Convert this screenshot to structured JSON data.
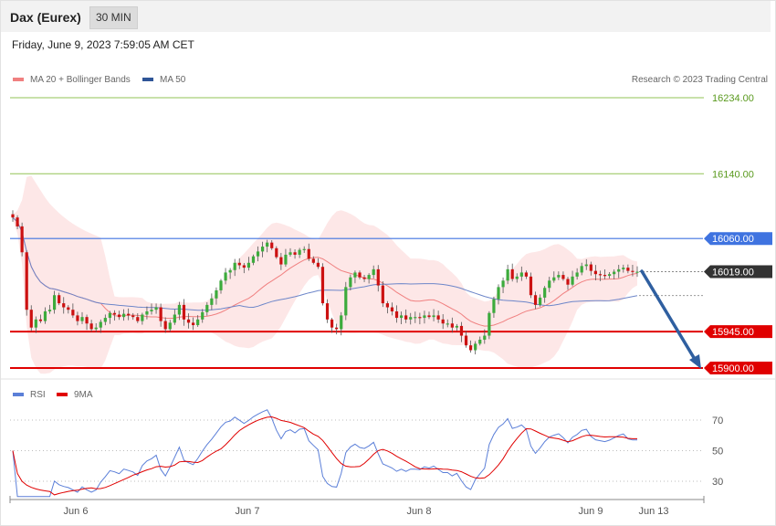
{
  "header": {
    "title": "Dax (Eurex)",
    "timeframe": "30 MIN"
  },
  "datetime": "Friday, June 9, 2023 7:59:05 AM CET",
  "copyright": "Research © 2023 Trading Central",
  "colors": {
    "ma20_bands": "#f08080",
    "ma50": "#2f5597",
    "rsi": "#5b7fd8",
    "rsi_ma": "#e00000",
    "resistance_green": "#92c356",
    "pivot": "#3f73e0",
    "support": "#e00000",
    "arrow": "#2f5fa0"
  },
  "chart_data": [
    {
      "type": "candlestick",
      "legend": [
        "MA 20 + Bollinger Bands",
        "MA 50"
      ],
      "levels": [
        {
          "value": 16234.0,
          "label": "16234.00",
          "kind": "resistance"
        },
        {
          "value": 16140.0,
          "label": "16140.00",
          "kind": "resistance"
        },
        {
          "value": 16060.0,
          "label": "16060.00",
          "kind": "pivot"
        },
        {
          "value": 16019.0,
          "label": "16019.00",
          "kind": "last"
        },
        {
          "value": 15945.0,
          "label": "15945.00",
          "kind": "support"
        },
        {
          "value": 15900.0,
          "label": "15900.00",
          "kind": "support"
        }
      ],
      "close": [
        16086,
        16075,
        16043,
        15972,
        15950,
        15960,
        15958,
        15970,
        15972,
        15990,
        15980,
        15975,
        15972,
        15965,
        15958,
        15963,
        15955,
        15948,
        15950,
        15957,
        15962,
        15968,
        15966,
        15963,
        15967,
        15965,
        15963,
        15958,
        15966,
        15970,
        15972,
        15975,
        15958,
        15948,
        15956,
        15966,
        15978,
        15960,
        15956,
        15953,
        15960,
        15969,
        15978,
        15986,
        15996,
        16008,
        16018,
        16021,
        16030,
        16027,
        16024,
        16030,
        16038,
        16044,
        16050,
        16055,
        16048,
        16037,
        16028,
        16040,
        16043,
        16040,
        16046,
        16047,
        16035,
        16030,
        16025,
        15980,
        15960,
        15950,
        15948,
        15965,
        16000,
        16012,
        16018,
        16012,
        16010,
        16015,
        16022,
        16002,
        15980,
        15975,
        15970,
        15962,
        15965,
        15960,
        15963,
        15963,
        15962,
        15965,
        15963,
        15965,
        15960,
        15955,
        15955,
        15950,
        15952,
        15940,
        15928,
        15922,
        15930,
        15935,
        15940,
        15968,
        15985,
        16000,
        16008,
        16022,
        16010,
        16013,
        16018,
        16013,
        15990,
        15978,
        15987,
        15999,
        16008,
        16012,
        16015,
        16010,
        16003,
        16013,
        16018,
        16026,
        16028,
        16020,
        16016,
        16015,
        16014,
        16016,
        16019,
        16022,
        16024,
        16020,
        16019,
        16019
      ],
      "x_ticks": [
        "Jun 6",
        "Jun 7",
        "Jun 8",
        "Jun 9",
        "Jun 13"
      ]
    },
    {
      "type": "line",
      "legend": [
        "RSI",
        "9MA"
      ],
      "y_ticks": [
        "70",
        "50",
        "30"
      ],
      "ylim": [
        15,
        80
      ]
    }
  ]
}
